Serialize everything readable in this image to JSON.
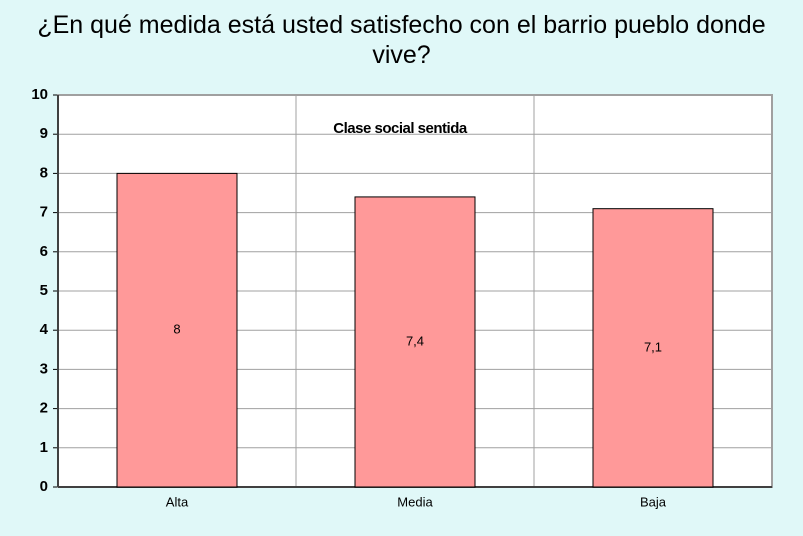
{
  "chart_data": {
    "type": "bar",
    "title": "¿En qué medida está usted satisfecho con el barrio pueblo donde vive?",
    "annotation": "Clase social sentida",
    "categories": [
      "Alta",
      "Media",
      "Baja"
    ],
    "values": [
      8,
      7.4,
      7.1
    ],
    "value_labels": [
      "8",
      "7,4",
      "7,1"
    ],
    "color": "#ff9999",
    "ylim": [
      0,
      10
    ],
    "yticks": [
      0,
      1,
      2,
      3,
      4,
      5,
      6,
      7,
      8,
      9,
      10
    ],
    "grid": true
  }
}
